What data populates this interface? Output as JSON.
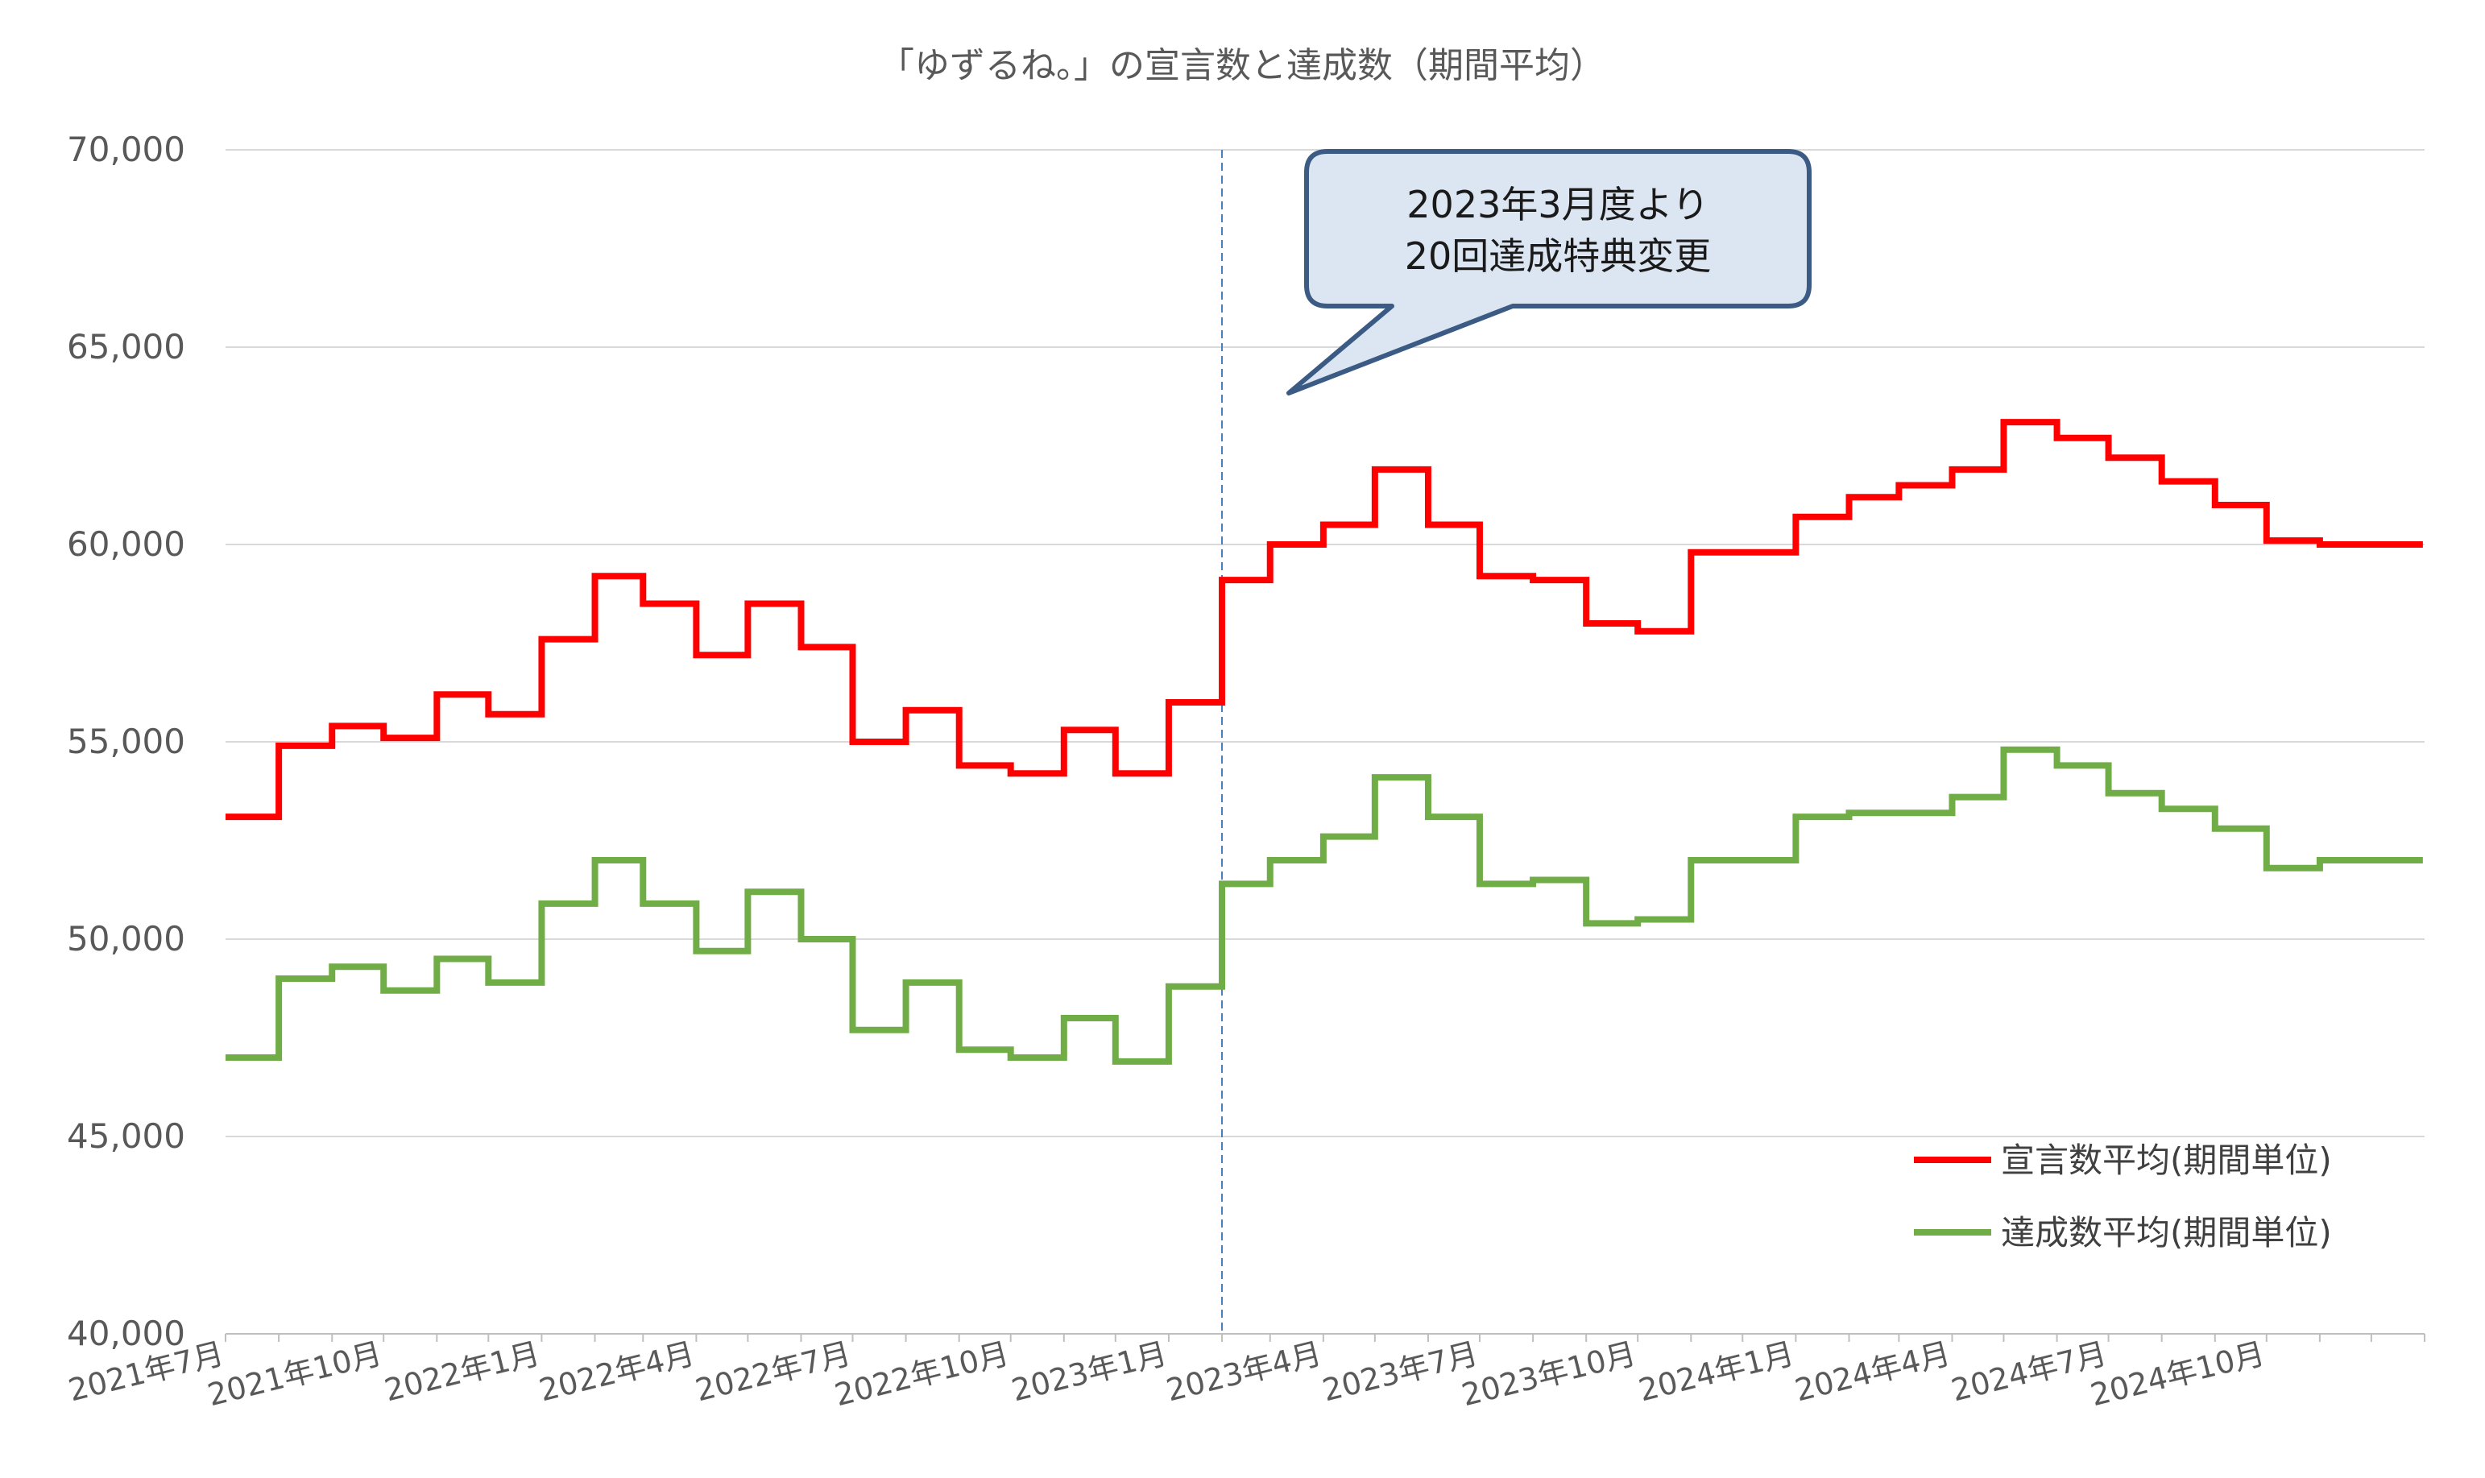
{
  "chart_data": {
    "type": "line",
    "title": "「ゆずるね。」の宣言数と達成数（期間平均）",
    "ylim": [
      40000,
      70000
    ],
    "y_ticks": [
      40000,
      45000,
      50000,
      55000,
      60000,
      65000,
      70000
    ],
    "y_tick_labels": [
      "40,000",
      "45,000",
      "50,000",
      "55,000",
      "60,000",
      "65,000",
      "70,000"
    ],
    "x_range": [
      "2021-07-01",
      "2025-01-01"
    ],
    "x_ticks": [
      "2021-07-01",
      "2021-10-01",
      "2022-01-01",
      "2022-04-01",
      "2022-07-01",
      "2022-10-01",
      "2023-01-01",
      "2023-04-01",
      "2023-07-01",
      "2023-10-01",
      "2024-01-01",
      "2024-04-01",
      "2024-07-01",
      "2024-10-01"
    ],
    "x_tick_labels": [
      "2021年7月",
      "2021年10月",
      "2022年1月",
      "2022年4月",
      "2022年7月",
      "2022年10月",
      "2023年1月",
      "2023年4月",
      "2023年7月",
      "2023年10月",
      "2024年1月",
      "2024年4月",
      "2024年7月",
      "2024年10月"
    ],
    "grid": true,
    "legend": "bottom-right",
    "step_dates": [
      "2021-07-01",
      "2021-08-01",
      "2021-09-01",
      "2021-10-01",
      "2021-11-01",
      "2021-12-01",
      "2022-01-01",
      "2022-02-01",
      "2022-03-01",
      "2022-04-01",
      "2022-05-01",
      "2022-06-01",
      "2022-07-01",
      "2022-08-01",
      "2022-09-01",
      "2022-10-01",
      "2022-11-01",
      "2022-12-01",
      "2023-01-01",
      "2023-02-01",
      "2023-03-01",
      "2023-04-01",
      "2023-05-01",
      "2023-06-01",
      "2023-07-01",
      "2023-08-01",
      "2023-09-01",
      "2023-10-01",
      "2023-11-01",
      "2023-12-01",
      "2024-01-01",
      "2024-02-01",
      "2024-03-01",
      "2024-04-01",
      "2024-05-01",
      "2024-06-01",
      "2024-07-01",
      "2024-08-01",
      "2024-09-01",
      "2024-10-01",
      "2024-11-01",
      "2024-12-01"
    ],
    "end_date": "2024-12-31",
    "series": [
      {
        "name": "宣言数平均(期間単位)",
        "color": "#ff0000",
        "values": [
          53100,
          54900,
          55400,
          55100,
          56200,
          55700,
          57600,
          59200,
          58500,
          57200,
          58500,
          57400,
          55000,
          55800,
          54400,
          54200,
          55300,
          54200,
          56000,
          59100,
          60000,
          60500,
          61900,
          60500,
          59200,
          59100,
          58000,
          57800,
          59800,
          59800,
          60700,
          61200,
          61500,
          61900,
          63100,
          62700,
          62200,
          61600,
          61000,
          60100,
          60000,
          60000
        ]
      },
      {
        "name": "達成数平均(期間単位)",
        "color": "#70ad47",
        "values": [
          47000,
          49000,
          49300,
          48700,
          49500,
          48900,
          50900,
          52000,
          50900,
          49700,
          51200,
          50000,
          47700,
          48900,
          47200,
          47000,
          48000,
          46900,
          48800,
          51400,
          52000,
          52600,
          54100,
          53100,
          51400,
          51500,
          50400,
          50500,
          52000,
          52000,
          53100,
          53200,
          53200,
          53600,
          54800,
          54400,
          53700,
          53300,
          52800,
          51800,
          52000,
          52000
        ]
      }
    ],
    "annotation": {
      "marker_date": "2023-02-01",
      "lines": [
        "2023年3月度より",
        "20回達成特典変更"
      ],
      "box_fill": "#dce6f2",
      "box_stroke": "#3b5b85"
    },
    "colors": {
      "grid": "#d9d9d9",
      "axis": "#bfbfbf",
      "text": "#595959",
      "marker_line": "#4a7ebb"
    }
  }
}
